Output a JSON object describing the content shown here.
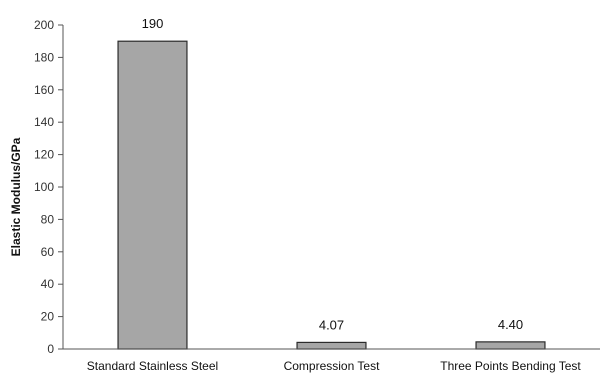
{
  "chart_data": {
    "type": "bar",
    "title": "",
    "xlabel": "",
    "ylabel": "Elastic Modulus/GPa",
    "categories": [
      "Standard Stainless Steel",
      "Compression Test",
      "Three Points Bending Test"
    ],
    "values": [
      190,
      4.07,
      4.4
    ],
    "data_labels": [
      "190",
      "4.07",
      "4.40"
    ],
    "ylim": [
      0,
      200
    ],
    "yticks": [
      "0",
      "20",
      "40",
      "60",
      "80",
      "100",
      "120",
      "140",
      "160",
      "180",
      "200"
    ],
    "grid": false,
    "legend": "none",
    "bar_color": "#a6a6a6",
    "bar_edge_color": "#2b2b2b",
    "axis_color": "#555555"
  }
}
